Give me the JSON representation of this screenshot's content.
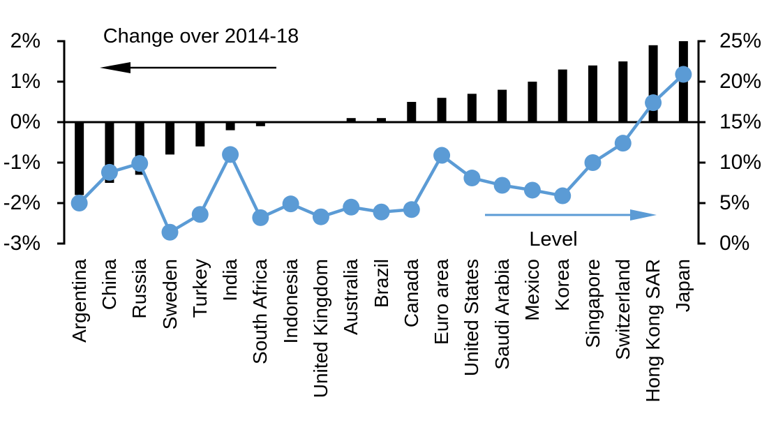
{
  "chart_data": {
    "type": "combo",
    "title": "",
    "grid": false,
    "background": "#FFFFFF",
    "categories": [
      "Argentina",
      "China",
      "Russia",
      "Sweden",
      "Turkey",
      "India",
      "South Africa",
      "Indonesia",
      "United Kingdom",
      "Australia",
      "Brazil",
      "Canada",
      "Euro area",
      "United States",
      "Saudi Arabia",
      "Mexico",
      "Korea",
      "Singapore",
      "Switzerland",
      "Hong Kong SAR",
      "Japan"
    ],
    "series": [
      {
        "name": "Change over 2014-18",
        "type": "bar",
        "axis": "left",
        "arrow": "left",
        "color": "#000000",
        "values": [
          -1.8,
          -1.5,
          -1.3,
          -0.8,
          -0.6,
          -0.2,
          -0.1,
          0,
          0,
          0.1,
          0.1,
          0.5,
          0.6,
          0.7,
          0.8,
          1.0,
          1.3,
          1.4,
          1.5,
          1.9,
          2.0
        ]
      },
      {
        "name": "Level",
        "type": "line",
        "axis": "right",
        "arrow": "right",
        "color": "#5B9BD5",
        "values": [
          5.0,
          8.8,
          9.9,
          1.4,
          3.6,
          11.0,
          3.2,
          4.9,
          3.3,
          4.5,
          3.9,
          4.2,
          10.9,
          8.1,
          7.2,
          6.6,
          5.9,
          10.0,
          12.4,
          17.4,
          20.9
        ]
      }
    ],
    "left_axis": {
      "tick_labels": [
        "2%",
        "1%",
        "0%",
        "-1%",
        "-2%",
        "-3%"
      ],
      "values": [
        2,
        1,
        0,
        -1,
        -2,
        -3
      ],
      "max": 2,
      "min": -3
    },
    "right_axis": {
      "tick_labels": [
        "25%",
        "20%",
        "15%",
        "10%",
        "5%",
        "0%"
      ],
      "values": [
        25,
        20,
        15,
        10,
        5,
        0
      ],
      "max": 25,
      "min": 0
    },
    "legend_position": "annotations-inside-plot"
  }
}
